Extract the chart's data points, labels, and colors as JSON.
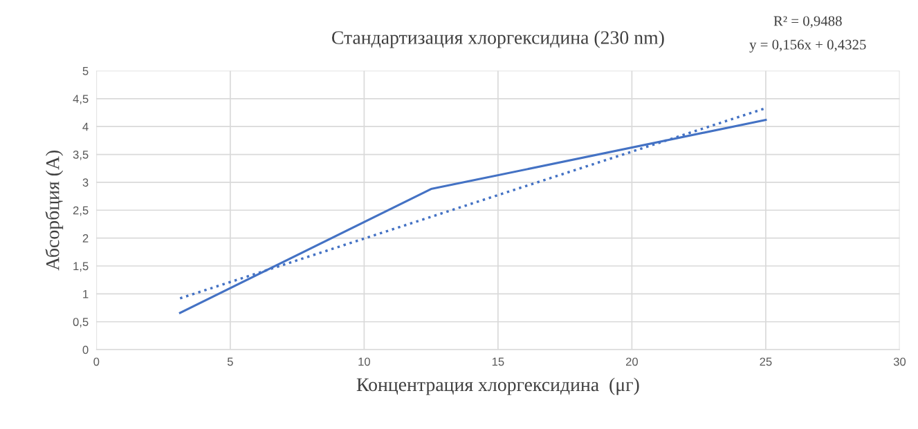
{
  "chart_data": {
    "type": "line",
    "title": "Стандартизация хлоргексидина (230 nm)",
    "xlabel": "Концентрация хлоргексидина  (μг)",
    "ylabel": "Абсорбция (A)",
    "series": [
      {
        "color": "#4472c4",
        "line_style": "solid",
        "x": [
          3.125,
          12.5,
          25
        ],
        "values": [
          0.66,
          2.88,
          4.12
        ]
      },
      {
        "color": "#4472c4",
        "line_style": "dotted",
        "x": [
          3.125,
          25
        ],
        "values": [
          0.92,
          4.33
        ]
      }
    ],
    "xlim": [
      0,
      30
    ],
    "xticks": [
      0,
      5,
      10,
      15,
      20,
      25,
      30
    ],
    "ylim": [
      0,
      5
    ],
    "yticks": [
      0,
      {
        "value": 0.5,
        "label": "0,5"
      },
      1,
      {
        "value": 1.5,
        "label": "1,5"
      },
      2,
      {
        "value": 2.5,
        "label": "2,5"
      },
      3,
      {
        "value": 3.5,
        "label": "3,5"
      },
      4,
      {
        "value": 4.5,
        "label": "4,5"
      },
      5
    ],
    "grid": true,
    "annotations": [
      "R² = 0,9488",
      "y = 0,156x + 0,4325"
    ]
  }
}
